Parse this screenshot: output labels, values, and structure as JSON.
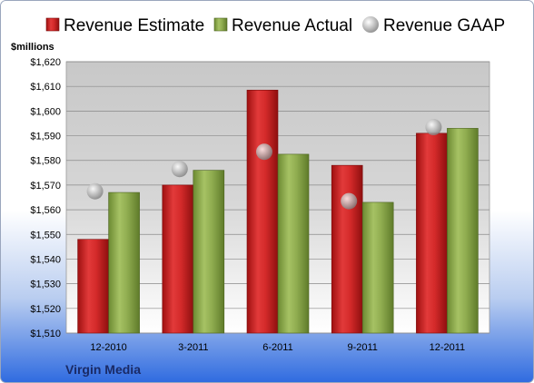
{
  "chart_data": {
    "type": "bar",
    "company": "Virgin Media",
    "ylabel": "$millions",
    "categories": [
      "12-2010",
      "3-2011",
      "6-2011",
      "9-2011",
      "12-2011"
    ],
    "series": [
      {
        "name": "Revenue Estimate",
        "kind": "bar",
        "color": "#d42a2a",
        "values": [
          1548,
          1570,
          1608.5,
          1578,
          1591
        ]
      },
      {
        "name": "Revenue Actual",
        "kind": "bar",
        "color": "#8fae4e",
        "values": [
          1567,
          1576,
          1582.5,
          1563,
          1593
        ]
      },
      {
        "name": "Revenue GAAP",
        "kind": "marker",
        "color": "#a9a9a9",
        "values": [
          1567.5,
          1576.5,
          1583.5,
          1563.5,
          1593.5
        ]
      }
    ],
    "ylim": [
      1510,
      1620
    ],
    "yticks": [
      "$1,510",
      "$1,520",
      "$1,530",
      "$1,540",
      "$1,550",
      "$1,560",
      "$1,570",
      "$1,580",
      "$1,590",
      "$1,600",
      "$1,610",
      "$1,620"
    ],
    "grid": true,
    "legend_position": "top"
  }
}
